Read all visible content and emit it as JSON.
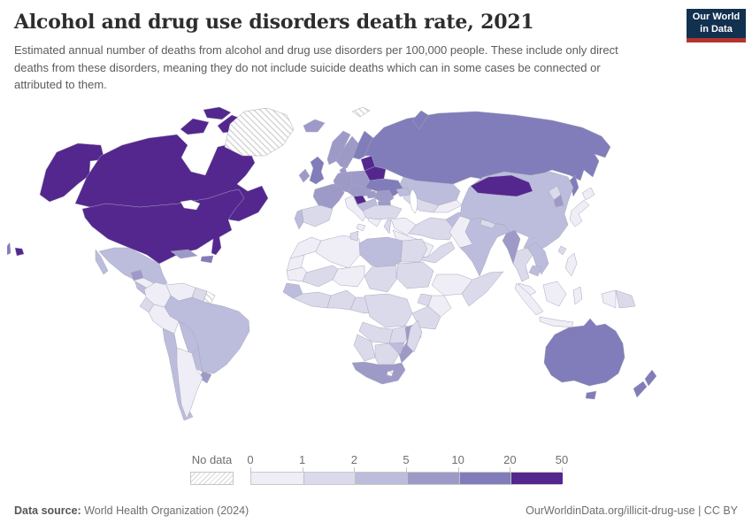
{
  "header": {
    "title": "Alcohol and drug use disorders death rate, 2021",
    "subtitle": "Estimated annual number of deaths from alcohol and drug use disorders per 100,000 people. These include only direct deaths from these disorders, meaning they do not include suicide deaths which can in some cases be connected or attributed to them.",
    "logo": {
      "line1": "Our World",
      "line2": "in Data"
    }
  },
  "footer": {
    "source_label": "Data source:",
    "source_value": "World Health Organization (2024)",
    "credit": "OurWorldinData.org/illicit-drug-use | CC BY"
  },
  "theme": {
    "logo_bg": "#12304f",
    "logo_red": "#b5342d",
    "title_color": "#2d2d2d",
    "subtitle_color": "#5b5b5b",
    "text_muted": "#6f6f6f"
  },
  "chart_data": {
    "type": "choropleth",
    "title": "Alcohol and drug use disorders death rate, 2021",
    "year": 2021,
    "unit": "deaths per 100,000 people",
    "legend": {
      "no_data_label": "No data",
      "tick_labels": [
        "0",
        "1",
        "2",
        "5",
        "10",
        "20",
        "50"
      ],
      "breaks": [
        0,
        1,
        2,
        5,
        10,
        20,
        50
      ],
      "bins": [
        {
          "range": "0-1",
          "color": "#efedf5"
        },
        {
          "range": "1-2",
          "color": "#dadaeb"
        },
        {
          "range": "2-5",
          "color": "#bcbddc"
        },
        {
          "range": "5-10",
          "color": "#9e9ac8"
        },
        {
          "range": "10-20",
          "color": "#807dba"
        },
        {
          "range": "20-50",
          "color": "#54278f"
        }
      ],
      "no_data_style": "gray-diagonal-hatch"
    },
    "regions": [
      {
        "id": "usa",
        "name": "United States",
        "bin": "20-50"
      },
      {
        "id": "canada",
        "name": "Canada",
        "bin": "20-50"
      },
      {
        "id": "greenland",
        "name": "Greenland",
        "bin": "no-data"
      },
      {
        "id": "mexico",
        "name": "Mexico",
        "bin": "2-5"
      },
      {
        "id": "guatemala",
        "name": "Guatemala",
        "bin": "5-10"
      },
      {
        "id": "central-america",
        "name": "Central America",
        "bin": "0-1"
      },
      {
        "id": "cuba",
        "name": "Cuba",
        "bin": "5-10"
      },
      {
        "id": "haiti",
        "name": "Haiti / Dominican Republic",
        "bin": "10-20"
      },
      {
        "id": "colombia",
        "name": "Colombia",
        "bin": "0-1"
      },
      {
        "id": "venezuela",
        "name": "Venezuela",
        "bin": "0-1"
      },
      {
        "id": "guyana-suriname",
        "name": "Guyana and Suriname",
        "bin": "1-2"
      },
      {
        "id": "french-guiana",
        "name": "French Guiana",
        "bin": "no-data"
      },
      {
        "id": "ecuador",
        "name": "Ecuador",
        "bin": "1-2"
      },
      {
        "id": "peru",
        "name": "Peru",
        "bin": "0-1"
      },
      {
        "id": "brazil",
        "name": "Brazil",
        "bin": "2-5"
      },
      {
        "id": "bolivia",
        "name": "Bolivia",
        "bin": "2-5"
      },
      {
        "id": "paraguay",
        "name": "Paraguay",
        "bin": "2-5"
      },
      {
        "id": "uruguay",
        "name": "Uruguay",
        "bin": "5-10"
      },
      {
        "id": "chile",
        "name": "Chile",
        "bin": "2-5"
      },
      {
        "id": "argentina",
        "name": "Argentina",
        "bin": "0-1"
      },
      {
        "id": "iceland",
        "name": "Iceland",
        "bin": "5-10"
      },
      {
        "id": "ireland",
        "name": "Ireland",
        "bin": "5-10"
      },
      {
        "id": "united-kingdom",
        "name": "United Kingdom",
        "bin": "10-20"
      },
      {
        "id": "norway",
        "name": "Norway",
        "bin": "5-10"
      },
      {
        "id": "sweden",
        "name": "Sweden",
        "bin": "5-10"
      },
      {
        "id": "finland",
        "name": "Finland",
        "bin": "10-20"
      },
      {
        "id": "denmark",
        "name": "Denmark",
        "bin": "5-10"
      },
      {
        "id": "baltic-states",
        "name": "Baltic states",
        "bin": "20-50"
      },
      {
        "id": "belarus",
        "name": "Belarus",
        "bin": "20-50"
      },
      {
        "id": "poland",
        "name": "Poland",
        "bin": "5-10"
      },
      {
        "id": "germany",
        "name": "Germany",
        "bin": "5-10"
      },
      {
        "id": "france",
        "name": "France",
        "bin": "5-10"
      },
      {
        "id": "spain",
        "name": "Spain",
        "bin": "1-2"
      },
      {
        "id": "portugal",
        "name": "Portugal",
        "bin": "2-5"
      },
      {
        "id": "italy",
        "name": "Italy",
        "bin": "0-1"
      },
      {
        "id": "central-europe",
        "name": "Czechia / Slovakia / Austria",
        "bin": "5-10"
      },
      {
        "id": "slovenia",
        "name": "Slovenia / Croatia",
        "bin": "20-50"
      },
      {
        "id": "hungary",
        "name": "Hungary",
        "bin": "5-10"
      },
      {
        "id": "romania",
        "name": "Romania",
        "bin": "5-10"
      },
      {
        "id": "balkans",
        "name": "Serbia / Bosnia",
        "bin": "2-5"
      },
      {
        "id": "bulgaria",
        "name": "Bulgaria",
        "bin": "5-10"
      },
      {
        "id": "greece",
        "name": "Greece",
        "bin": "0-1"
      },
      {
        "id": "ukraine",
        "name": "Ukraine",
        "bin": "10-20"
      },
      {
        "id": "russia",
        "name": "Russia",
        "bin": "10-20"
      },
      {
        "id": "svalbard",
        "name": "Svalbard",
        "bin": "no-data"
      },
      {
        "id": "kazakhstan",
        "name": "Kazakhstan",
        "bin": "2-5"
      },
      {
        "id": "central-asia",
        "name": "Uzbekistan / Turkmenistan",
        "bin": "1-2"
      },
      {
        "id": "kyrgyzstan-tajikistan",
        "name": "Kyrgyzstan / Tajikistan",
        "bin": "0-1"
      },
      {
        "id": "caucasus",
        "name": "Caucasus",
        "bin": "2-5"
      },
      {
        "id": "turkey",
        "name": "Turkey",
        "bin": "1-2"
      },
      {
        "id": "syria-iraq",
        "name": "Syria / Iraq",
        "bin": "0-1"
      },
      {
        "id": "levant",
        "name": "Jordan / Israel / Lebanon",
        "bin": "1-2"
      },
      {
        "id": "saudi-arabia",
        "name": "Saudi Arabia",
        "bin": "0-1"
      },
      {
        "id": "yemen-oman",
        "name": "Yemen / Oman",
        "bin": "1-2"
      },
      {
        "id": "iran",
        "name": "Iran",
        "bin": "1-2"
      },
      {
        "id": "afghanistan",
        "name": "Afghanistan",
        "bin": "2-5"
      },
      {
        "id": "pakistan",
        "name": "Pakistan",
        "bin": "0-1"
      },
      {
        "id": "india",
        "name": "India",
        "bin": "2-5"
      },
      {
        "id": "sri-lanka",
        "name": "Sri Lanka",
        "bin": "1-2"
      },
      {
        "id": "nepal",
        "name": "Nepal",
        "bin": "1-2"
      },
      {
        "id": "china",
        "name": "China",
        "bin": "2-5"
      },
      {
        "id": "mongolia",
        "name": "Mongolia",
        "bin": "20-50"
      },
      {
        "id": "north-korea",
        "name": "North Korea",
        "bin": "1-2"
      },
      {
        "id": "south-korea",
        "name": "South Korea",
        "bin": "5-10"
      },
      {
        "id": "japan",
        "name": "Japan",
        "bin": "0-1"
      },
      {
        "id": "taiwan",
        "name": "Taiwan",
        "bin": "1-2"
      },
      {
        "id": "myanmar",
        "name": "Myanmar",
        "bin": "5-10"
      },
      {
        "id": "thailand",
        "name": "Thailand",
        "bin": "1-2"
      },
      {
        "id": "vietnam",
        "name": "Vietnam / Laos",
        "bin": "2-5"
      },
      {
        "id": "cambodia",
        "name": "Cambodia",
        "bin": "2-5"
      },
      {
        "id": "malaysia",
        "name": "Malaysia",
        "bin": "0-1"
      },
      {
        "id": "indonesia",
        "name": "Indonesia",
        "bin": "0-1"
      },
      {
        "id": "papua-new-guinea",
        "name": "Papua New Guinea",
        "bin": "1-2"
      },
      {
        "id": "philippines",
        "name": "Philippines",
        "bin": "0-1"
      },
      {
        "id": "australia",
        "name": "Australia",
        "bin": "10-20"
      },
      {
        "id": "new-zealand",
        "name": "New Zealand",
        "bin": "10-20"
      },
      {
        "id": "morocco",
        "name": "Morocco",
        "bin": "0-1"
      },
      {
        "id": "western-sahara",
        "name": "Western Sahara",
        "bin": "0-1"
      },
      {
        "id": "algeria",
        "name": "Algeria",
        "bin": "0-1"
      },
      {
        "id": "tunisia",
        "name": "Tunisia",
        "bin": "1-2"
      },
      {
        "id": "libya",
        "name": "Libya",
        "bin": "2-5"
      },
      {
        "id": "egypt",
        "name": "Egypt",
        "bin": "1-2"
      },
      {
        "id": "mauritania",
        "name": "Mauritania",
        "bin": "0-1"
      },
      {
        "id": "mali",
        "name": "Mali",
        "bin": "1-2"
      },
      {
        "id": "niger",
        "name": "Niger",
        "bin": "0-1"
      },
      {
        "id": "chad",
        "name": "Chad",
        "bin": "1-2"
      },
      {
        "id": "sudan",
        "name": "Sudan",
        "bin": "1-2"
      },
      {
        "id": "senegal",
        "name": "Senegal",
        "bin": "2-5"
      },
      {
        "id": "west-africa",
        "name": "Guinea / Ghana / Ivory Coast",
        "bin": "1-2"
      },
      {
        "id": "nigeria",
        "name": "Nigeria",
        "bin": "1-2"
      },
      {
        "id": "cameroon-car",
        "name": "Cameroon / Central African Rep.",
        "bin": "1-2"
      },
      {
        "id": "ethiopia",
        "name": "Ethiopia",
        "bin": "0-1"
      },
      {
        "id": "somalia",
        "name": "Somalia",
        "bin": "1-2"
      },
      {
        "id": "kenya",
        "name": "Kenya",
        "bin": "0-1"
      },
      {
        "id": "uganda",
        "name": "Uganda",
        "bin": "1-2"
      },
      {
        "id": "dr-congo",
        "name": "Democratic Republic of Congo",
        "bin": "1-2"
      },
      {
        "id": "tanzania",
        "name": "Tanzania",
        "bin": "1-2"
      },
      {
        "id": "angola",
        "name": "Angola",
        "bin": "1-2"
      },
      {
        "id": "zambia",
        "name": "Zambia",
        "bin": "1-2"
      },
      {
        "id": "mozambique",
        "name": "Mozambique",
        "bin": "5-10"
      },
      {
        "id": "zimbabwe",
        "name": "Zimbabwe",
        "bin": "2-5"
      },
      {
        "id": "namibia",
        "name": "Namibia",
        "bin": "1-2"
      },
      {
        "id": "botswana",
        "name": "Botswana",
        "bin": "1-2"
      },
      {
        "id": "south-africa",
        "name": "South Africa",
        "bin": "5-10"
      },
      {
        "id": "lesotho",
        "name": "Lesotho",
        "bin": "no-data"
      },
      {
        "id": "madagascar",
        "name": "Madagascar",
        "bin": "1-2"
      }
    ]
  }
}
